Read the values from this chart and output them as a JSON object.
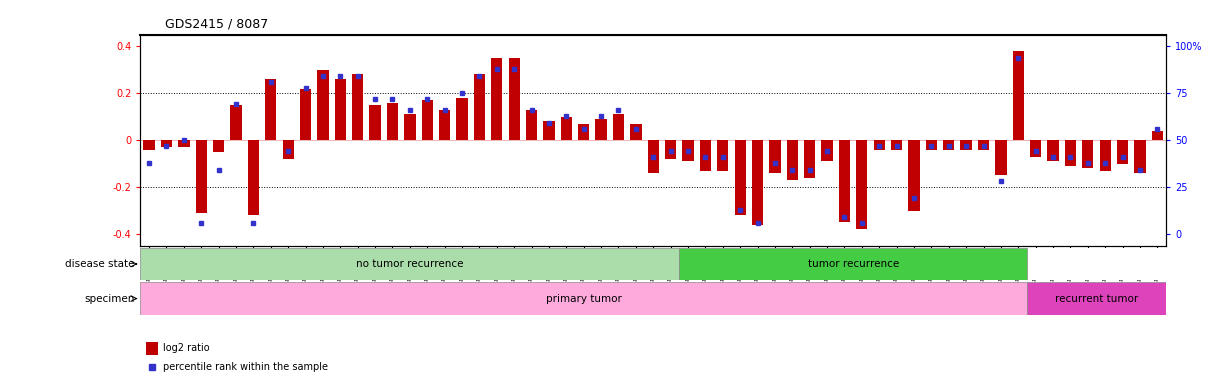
{
  "title": "GDS2415 / 8087",
  "samples": [
    "GSM110395",
    "GSM110396",
    "GSM110397",
    "GSM110398",
    "GSM110399",
    "GSM110400",
    "GSM110401",
    "GSM110406",
    "GSM110407",
    "GSM110409",
    "GSM110410",
    "GSM110413",
    "GSM110414",
    "GSM110415",
    "GSM110416",
    "GSM110418",
    "GSM110419",
    "GSM110420",
    "GSM110421",
    "GSM110423",
    "GSM110424",
    "GSM110425",
    "GSM110427",
    "GSM110428",
    "GSM110430",
    "GSM110431",
    "GSM110432",
    "GSM110434",
    "GSM110435",
    "GSM110437",
    "GSM110438",
    "GSM110388",
    "GSM110392",
    "GSM110394",
    "GSM110402",
    "GSM110411",
    "GSM110412",
    "GSM110417",
    "GSM110422",
    "GSM110426",
    "GSM110429",
    "GSM110433",
    "GSM110436",
    "GSM110440",
    "GSM110441",
    "GSM110444",
    "GSM110445",
    "GSM110446",
    "GSM110449",
    "GSM110451",
    "GSM110391",
    "GSM110439",
    "GSM110442",
    "GSM110443",
    "GSM110447",
    "GSM110448",
    "GSM110450",
    "GSM110452",
    "GSM110453"
  ],
  "log2_ratio": [
    -0.04,
    -0.03,
    -0.03,
    -0.31,
    -0.05,
    0.15,
    -0.32,
    0.26,
    -0.08,
    0.22,
    0.3,
    0.26,
    0.28,
    0.15,
    0.16,
    0.11,
    0.17,
    0.13,
    0.18,
    0.28,
    0.35,
    0.35,
    0.13,
    0.08,
    0.1,
    0.07,
    0.09,
    0.11,
    0.07,
    -0.14,
    -0.08,
    -0.09,
    -0.13,
    -0.13,
    -0.32,
    -0.36,
    -0.14,
    -0.17,
    -0.16,
    -0.09,
    -0.35,
    -0.38,
    -0.04,
    -0.04,
    -0.3,
    -0.04,
    -0.04,
    -0.04,
    -0.04,
    -0.15,
    0.38,
    -0.07,
    -0.09,
    -0.11,
    -0.12,
    -0.13,
    -0.1,
    -0.14,
    0.04
  ],
  "percentile": [
    38,
    47,
    50,
    6,
    34,
    69,
    6,
    81,
    44,
    78,
    84,
    84,
    84,
    72,
    72,
    66,
    72,
    66,
    75,
    84,
    88,
    88,
    66,
    59,
    63,
    56,
    63,
    66,
    56,
    41,
    44,
    44,
    41,
    41,
    13,
    6,
    38,
    34,
    34,
    44,
    9,
    6,
    47,
    47,
    19,
    47,
    47,
    47,
    47,
    28,
    94,
    44,
    41,
    41,
    38,
    38,
    41,
    34,
    56
  ],
  "no_recurrence_count": 31,
  "recurrence_count": 20,
  "primary_tumor_count": 51,
  "recurrent_tumor_count": 8,
  "n_total": 59,
  "bar_color": "#c00000",
  "dot_color": "#3333cc",
  "yticks": [
    -0.4,
    -0.2,
    0.0,
    0.2,
    0.4
  ],
  "ytick_labels_left": [
    "-0.4",
    "-0.2",
    "0",
    "0.2",
    "0.4"
  ],
  "ytick_labels_right": [
    "0",
    "25",
    "50",
    "75",
    "100%"
  ],
  "ylim": [
    -0.45,
    0.45
  ],
  "color_no_recurrence": "#aaddaa",
  "color_tumor_recurrence": "#44cc44",
  "color_primary_tumor": "#ffaadd",
  "color_recurrent_tumor": "#dd44bb",
  "label_disease": "disease state",
  "label_specimen": "specimen",
  "text_no_recurrence": "no tumor recurrence",
  "text_tumor_recurrence": "tumor recurrence",
  "text_primary_tumor": "primary tumor",
  "text_recurrent_tumor": "recurrent tumor",
  "legend_log2": "log2 ratio",
  "legend_percentile": "percentile rank within the sample"
}
